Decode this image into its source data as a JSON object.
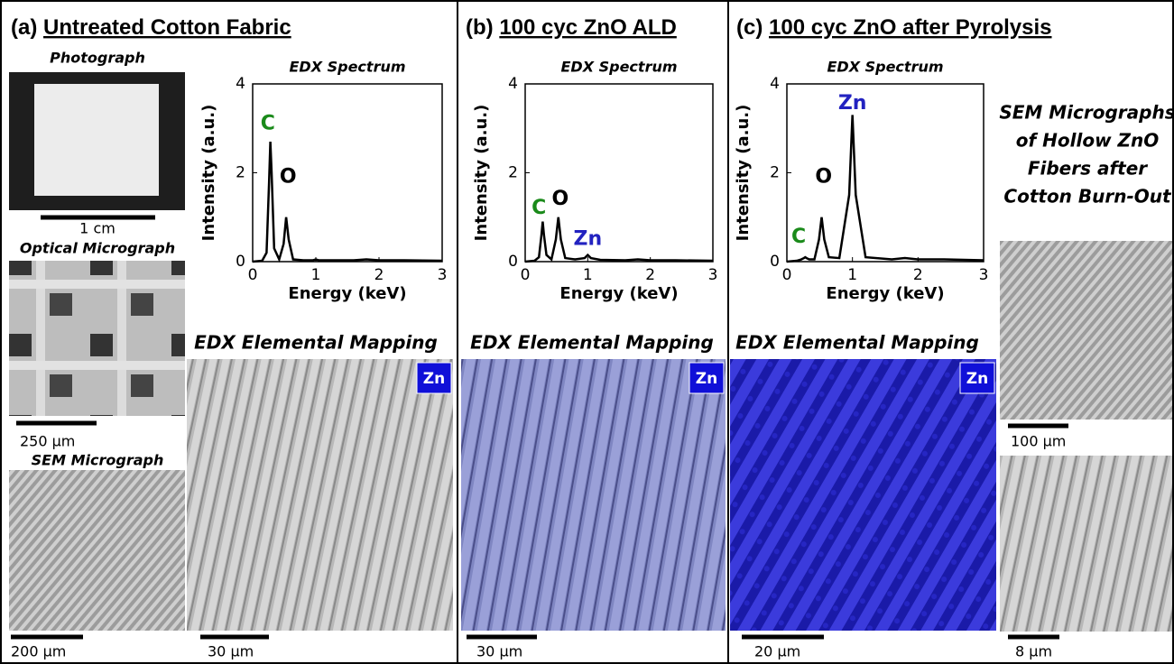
{
  "panels": [
    {
      "label": "(a)",
      "title": "Untreated Cotton Fabric",
      "mapping_title": "EDX Elemental Mapping",
      "element_badge": "Zn",
      "scale_bar": "30 µm"
    },
    {
      "label": "(b)",
      "title": "100 cyc ZnO ALD",
      "mapping_title": "EDX Elemental Mapping",
      "element_badge": "Zn",
      "scale_bar": "30 µm"
    },
    {
      "label": "(c)",
      "title": "100 cyc ZnO after Pyrolysis",
      "mapping_title": "EDX Elemental Mapping",
      "element_badge": "Zn",
      "scale_bar": "20 µm"
    }
  ],
  "left_column": {
    "photo_title": "Photograph",
    "photo_scale": "1 cm",
    "optical_title": "Optical Micrograph",
    "optical_scale": "250 µm",
    "sem_title": "SEM Micrograph",
    "sem_scale": "200 µm"
  },
  "right_column": {
    "title_lines": [
      "SEM Micrographs",
      "of Hollow ZnO",
      "Fibers after",
      "Cotton Burn-Out"
    ],
    "scales": [
      "100 µm",
      "8 µm"
    ]
  },
  "chart_data": [
    {
      "type": "line",
      "title": "EDX Spectrum",
      "x_label": "Energy (keV)",
      "y_label": "Intensity (a.u.)",
      "xlim": [
        0,
        3
      ],
      "ylim": [
        0,
        4
      ],
      "xticks": [
        0,
        1,
        2,
        3
      ],
      "yticks": [
        0,
        2,
        4
      ],
      "color": "#000000",
      "x": [
        0,
        0.15,
        0.22,
        0.26,
        0.28,
        0.3,
        0.34,
        0.42,
        0.49,
        0.53,
        0.57,
        0.64,
        0.8,
        0.95,
        1.0,
        1.05,
        1.2,
        1.6,
        1.8,
        2.0,
        2.4,
        3.0
      ],
      "values": [
        0,
        0.02,
        0.2,
        1.8,
        2.7,
        2.0,
        0.3,
        0.05,
        0.4,
        1.0,
        0.5,
        0.05,
        0.03,
        0.03,
        0.05,
        0.03,
        0.03,
        0.03,
        0.05,
        0.03,
        0.03,
        0.02
      ],
      "annotations": [
        {
          "text": "C",
          "x": 0.24,
          "y": 3.1,
          "color": "#1a8a1a"
        },
        {
          "text": "O",
          "x": 0.56,
          "y": 1.9,
          "color": "#000000"
        }
      ]
    },
    {
      "type": "line",
      "title": "EDX Spectrum",
      "x_label": "Energy (keV)",
      "y_label": "Intensity (a.u.)",
      "xlim": [
        0,
        3
      ],
      "ylim": [
        0,
        4
      ],
      "xticks": [
        0,
        1,
        2,
        3
      ],
      "yticks": [
        0,
        2,
        4
      ],
      "color": "#000000",
      "x": [
        0,
        0.15,
        0.22,
        0.26,
        0.28,
        0.3,
        0.34,
        0.42,
        0.49,
        0.53,
        0.57,
        0.64,
        0.8,
        0.95,
        1.0,
        1.05,
        1.2,
        1.6,
        1.8,
        2.0,
        2.4,
        3.0
      ],
      "values": [
        0,
        0.02,
        0.1,
        0.6,
        0.9,
        0.6,
        0.15,
        0.05,
        0.5,
        1.0,
        0.5,
        0.08,
        0.05,
        0.08,
        0.15,
        0.08,
        0.04,
        0.03,
        0.05,
        0.03,
        0.03,
        0.02
      ],
      "annotations": [
        {
          "text": "C",
          "x": 0.22,
          "y": 1.2,
          "color": "#1a8a1a"
        },
        {
          "text": "O",
          "x": 0.56,
          "y": 1.4,
          "color": "#000000"
        },
        {
          "text": "Zn",
          "x": 1.0,
          "y": 0.5,
          "color": "#2222c0"
        }
      ]
    },
    {
      "type": "line",
      "title": "EDX Spectrum",
      "x_label": "Energy (keV)",
      "y_label": "Intensity (a.u.)",
      "xlim": [
        0,
        3
      ],
      "ylim": [
        0,
        4
      ],
      "xticks": [
        0,
        1,
        2,
        3
      ],
      "yticks": [
        0,
        2,
        4
      ],
      "color": "#000000",
      "x": [
        0,
        0.15,
        0.22,
        0.26,
        0.28,
        0.3,
        0.34,
        0.42,
        0.49,
        0.53,
        0.57,
        0.64,
        0.8,
        0.95,
        1.0,
        1.05,
        1.2,
        1.6,
        1.8,
        2.0,
        2.4,
        3.0
      ],
      "values": [
        0,
        0.02,
        0.05,
        0.08,
        0.1,
        0.08,
        0.05,
        0.05,
        0.5,
        1.0,
        0.5,
        0.1,
        0.08,
        1.5,
        3.3,
        1.5,
        0.1,
        0.05,
        0.08,
        0.05,
        0.05,
        0.03
      ],
      "annotations": [
        {
          "text": "C",
          "x": 0.18,
          "y": 0.55,
          "color": "#1a8a1a"
        },
        {
          "text": "O",
          "x": 0.56,
          "y": 1.9,
          "color": "#000000"
        },
        {
          "text": "Zn",
          "x": 1.0,
          "y": 3.55,
          "color": "#2222c0"
        }
      ]
    }
  ]
}
